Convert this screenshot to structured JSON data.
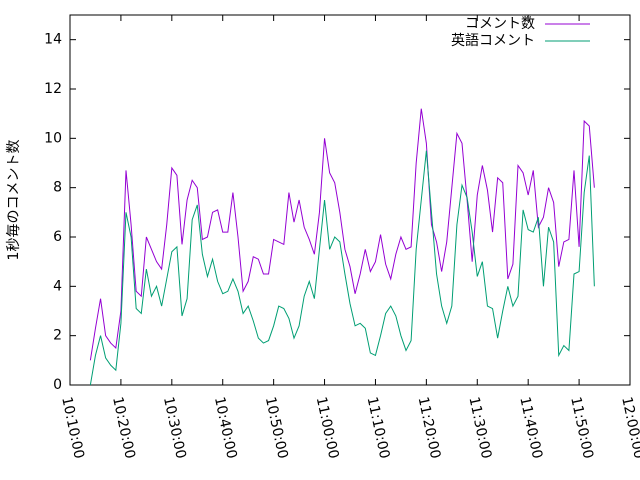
{
  "chart_data": {
    "type": "line",
    "y_label": "1秒毎のコメント数",
    "x": [
      "10:14:00",
      "10:15:00",
      "10:16:00",
      "10:17:00",
      "10:18:00",
      "10:19:00",
      "10:20:00",
      "10:21:00",
      "10:22:00",
      "10:23:00",
      "10:24:00",
      "10:25:00",
      "10:26:00",
      "10:27:00",
      "10:28:00",
      "10:29:00",
      "10:30:00",
      "10:31:00",
      "10:32:00",
      "10:33:00",
      "10:34:00",
      "10:35:00",
      "10:36:00",
      "10:37:00",
      "10:38:00",
      "10:39:00",
      "10:40:00",
      "10:41:00",
      "10:42:00",
      "10:43:00",
      "10:44:00",
      "10:45:00",
      "10:46:00",
      "10:47:00",
      "10:48:00",
      "10:49:00",
      "10:50:00",
      "10:51:00",
      "10:52:00",
      "10:53:00",
      "10:54:00",
      "10:55:00",
      "10:56:00",
      "10:57:00",
      "10:58:00",
      "10:59:00",
      "11:00:00",
      "11:01:00",
      "11:02:00",
      "11:03:00",
      "11:04:00",
      "11:05:00",
      "11:06:00",
      "11:07:00",
      "11:08:00",
      "11:09:00",
      "11:10:00",
      "11:11:00",
      "11:12:00",
      "11:13:00",
      "11:14:00",
      "11:15:00",
      "11:16:00",
      "11:17:00",
      "11:18:00",
      "11:19:00",
      "11:20:00",
      "11:21:00",
      "11:22:00",
      "11:23:00",
      "11:24:00",
      "11:25:00",
      "11:26:00",
      "11:27:00",
      "11:28:00",
      "11:29:00",
      "11:30:00",
      "11:31:00",
      "11:32:00",
      "11:33:00",
      "11:34:00",
      "11:35:00",
      "11:36:00",
      "11:37:00",
      "11:38:00",
      "11:39:00",
      "11:40:00",
      "11:41:00",
      "11:42:00",
      "11:43:00",
      "11:44:00",
      "11:45:00",
      "11:46:00",
      "11:47:00",
      "11:48:00",
      "11:49:00",
      "11:50:00",
      "11:51:00",
      "11:52:00",
      "11:53:00"
    ],
    "series": [
      {
        "name": "コメント数",
        "color": "#9400d3",
        "values": [
          1.0,
          2.3,
          3.5,
          2.0,
          1.7,
          1.5,
          3.0,
          8.7,
          6.5,
          3.8,
          3.6,
          6.0,
          5.5,
          5.0,
          4.7,
          6.5,
          8.8,
          8.5,
          5.7,
          7.5,
          8.3,
          8.0,
          5.9,
          6.0,
          7.0,
          7.1,
          6.2,
          6.2,
          7.8,
          6.0,
          3.8,
          4.2,
          5.2,
          5.1,
          4.5,
          4.5,
          5.9,
          5.8,
          5.7,
          7.8,
          6.6,
          7.5,
          6.4,
          5.9,
          5.3,
          7.0,
          10.0,
          8.6,
          8.2,
          7.0,
          5.5,
          4.8,
          3.7,
          4.5,
          5.5,
          4.6,
          5.0,
          6.1,
          4.9,
          4.3,
          5.3,
          6.0,
          5.5,
          5.6,
          9.0,
          11.2,
          9.8,
          6.5,
          5.8,
          4.6,
          5.8,
          8.0,
          10.2,
          9.8,
          7.5,
          5.0,
          7.7,
          8.9,
          7.9,
          6.2,
          8.4,
          8.2,
          4.3,
          4.9,
          8.9,
          8.6,
          7.7,
          8.7,
          6.4,
          6.8,
          8.0,
          7.4,
          4.8,
          5.8,
          5.9,
          8.7,
          5.6,
          10.7,
          10.5,
          8.0
        ]
      },
      {
        "name": "英語コメント",
        "color": "#009e73",
        "values": [
          0.0,
          1.2,
          2.0,
          1.1,
          0.8,
          0.6,
          2.5,
          7.0,
          6.0,
          3.1,
          2.9,
          4.7,
          3.6,
          4.0,
          3.2,
          4.3,
          5.4,
          5.6,
          2.8,
          3.5,
          6.7,
          7.3,
          5.3,
          4.4,
          5.1,
          4.2,
          3.7,
          3.8,
          4.3,
          3.8,
          2.9,
          3.2,
          2.6,
          1.9,
          1.7,
          1.8,
          2.4,
          3.2,
          3.1,
          2.7,
          1.9,
          2.4,
          3.6,
          4.2,
          3.5,
          5.5,
          7.5,
          5.5,
          6.0,
          5.8,
          4.5,
          3.3,
          2.4,
          2.5,
          2.3,
          1.3,
          1.2,
          2.0,
          2.9,
          3.2,
          2.8,
          2.0,
          1.4,
          1.8,
          5.5,
          7.5,
          9.5,
          7.0,
          4.5,
          3.2,
          2.5,
          3.2,
          6.5,
          8.1,
          7.6,
          6.2,
          4.4,
          5.0,
          3.2,
          3.1,
          1.9,
          3.0,
          4.0,
          3.2,
          3.6,
          7.1,
          6.3,
          6.2,
          6.8,
          4.0,
          6.4,
          5.8,
          1.2,
          1.6,
          1.4,
          4.5,
          4.6,
          7.8,
          9.3,
          4.0
        ]
      }
    ],
    "xlim": [
      "10:10:00",
      "12:00:00"
    ],
    "xticks": [
      "10:10:00",
      "10:20:00",
      "10:30:00",
      "10:40:00",
      "10:50:00",
      "11:00:00",
      "11:10:00",
      "11:20:00",
      "11:30:00",
      "11:40:00",
      "11:50:00",
      "12:00:00"
    ],
    "ylim": [
      0,
      15
    ],
    "yticks": [
      0,
      2,
      4,
      6,
      8,
      10,
      12,
      14
    ],
    "legend": "top-right",
    "grid": false
  }
}
